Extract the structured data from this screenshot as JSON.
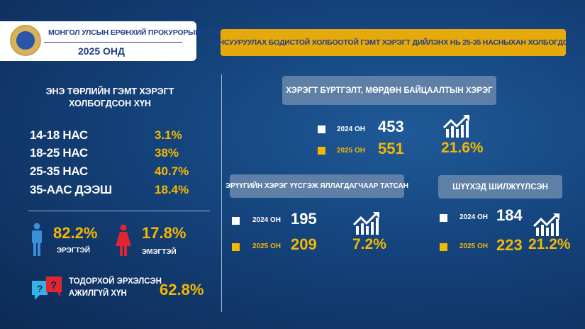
{
  "header": {
    "org": "МОНГОЛ УЛСЫН ЕРӨНХИЙ ПРОКУРОРЫН ГАЗАР",
    "year": "2025 ОНД"
  },
  "banner": "МАНСУУРУУЛАХ БОДИСТОЙ ХОЛБООТОЙ ГЭМТ ХЭРЭГТ ДИЙЛЭНХ НЬ 25-35 НАСНЫХАН ХОЛБОГДСОН",
  "left": {
    "heading_line1": "ЭНЭ ТӨРЛИЙН ГЭМТ ХЭРЭГТ",
    "heading_line2": "ХОЛБОГДСОН ХҮН",
    "ages": [
      {
        "label": "14-18 НАС",
        "value": "3.1%"
      },
      {
        "label": "18-25 НАС",
        "value": "38%"
      },
      {
        "label": "25-35 НАС",
        "value": "40.7%"
      },
      {
        "label": "35-ААС ДЭЭШ",
        "value": "18.4%"
      }
    ],
    "male": {
      "value": "82.2%",
      "label": "ЭРЭГТЭЙ"
    },
    "female": {
      "value": "17.8%",
      "label": "ЭМЭГТЭЙ"
    },
    "unemployed": {
      "line1": "ТОДОРХОЙ ЭРХЭЛСЭН",
      "line2": "АЖИЛГҮЙ ХҮН",
      "value": "62.8%"
    }
  },
  "panels": [
    {
      "title": "ХЭРЭГТ БҮРТГЭЛТ, МӨРДӨН БАЙЦААЛТЫН ХЭРЭГ",
      "y2024_label": "2024 ОН",
      "y2024": "453",
      "y2025_label": "2025 ОН",
      "y2025": "551",
      "growth": "21.6%"
    },
    {
      "title": "ЭРҮҮГИЙН ХЭРЭГ ҮҮСГЭЖ ЯЛЛАГДАГЧААР ТАТСАН",
      "y2024_label": "2024 ОН",
      "y2024": "195",
      "y2025_label": "2025 ОН",
      "y2025": "209",
      "growth": "7.2%"
    },
    {
      "title": "ШҮҮХЭД ШИЛЖҮҮЛСЭН",
      "y2024_label": "2024 ОН",
      "y2024": "184",
      "y2025_label": "2025 ОН",
      "y2025": "223",
      "growth": "21.2%"
    }
  ],
  "colors": {
    "accent": "#f5b800",
    "navy": "#14427a",
    "male": "#3a8fd9",
    "female": "#e2262f"
  }
}
